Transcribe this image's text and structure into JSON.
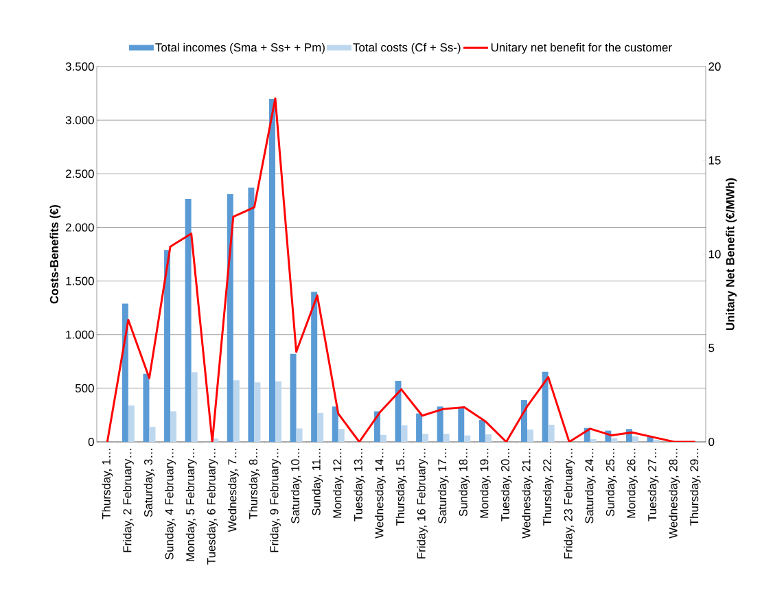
{
  "chart_data": {
    "type": "bar",
    "categories": [
      "Thursday, 1…",
      "Friday, 2 February…",
      "Saturday, 3…",
      "Sunday, 4 February…",
      "Monday, 5 February…",
      "Tuesday, 6 February…",
      "Wednesday, 7…",
      "Thursday, 8…",
      "Friday, 9 February…",
      "Saturday, 10…",
      "Sunday, 11…",
      "Monday, 12…",
      "Tuesday, 13…",
      "Wednesday, 14…",
      "Thursday, 15…",
      "Friday, 16 February…",
      "Saturday, 17…",
      "Sunday, 18…",
      "Monday, 19…",
      "Tuesday, 20…",
      "Wednesday, 21…",
      "Thursday, 22…",
      "Friday, 23 February…",
      "Saturday, 24…",
      "Sunday, 25…",
      "Monday, 26…",
      "Tuesday, 27…",
      "Wednesday, 28…",
      "Thursday, 29…"
    ],
    "series": [
      {
        "name": "Total incomes (Sma + Ss+ + Pm)",
        "color": "#5b9bd5",
        "values": [
          0,
          1290,
          635,
          1790,
          2265,
          0,
          2310,
          2370,
          3200,
          820,
          1400,
          330,
          0,
          285,
          570,
          265,
          330,
          320,
          205,
          0,
          390,
          655,
          0,
          130,
          105,
          120,
          55,
          0,
          0
        ]
      },
      {
        "name": "Total costs (Cf + Ss-)",
        "color": "#bdd7ee",
        "values": [
          0,
          340,
          140,
          285,
          650,
          30,
          575,
          555,
          565,
          125,
          270,
          120,
          0,
          65,
          155,
          75,
          75,
          60,
          70,
          0,
          115,
          160,
          0,
          25,
          35,
          50,
          20,
          0,
          0
        ]
      },
      {
        "name": "Unitary net benefit for the customer",
        "type": "line",
        "axis": "y2",
        "color": "#ff0000",
        "values": [
          0,
          6.5,
          3.4,
          10.4,
          11.1,
          0,
          12.0,
          12.5,
          18.3,
          4.8,
          7.8,
          1.5,
          0,
          1.6,
          2.8,
          1.4,
          1.75,
          1.85,
          1.1,
          0,
          1.9,
          3.45,
          0,
          0.7,
          0.35,
          0.5,
          0.25,
          0,
          0
        ]
      }
    ],
    "ylabel": "Costs-Benefits (€)",
    "y2label": "Unitary Net Benefit (€/MWh)",
    "ylim": [
      0,
      3500
    ],
    "yticks": [
      0,
      500,
      {
        "value": 1000,
        "label": "1.000"
      },
      {
        "value": 1500,
        "label": "1.500"
      },
      {
        "value": 2000,
        "label": "2.000"
      },
      {
        "value": 2500,
        "label": "2.500"
      },
      {
        "value": 3000,
        "label": "3.000"
      },
      {
        "value": 3500,
        "label": "3.500"
      }
    ],
    "y2lim": [
      0,
      20
    ],
    "y2ticks": [
      0,
      5,
      10,
      15,
      20
    ],
    "grid": "y",
    "legend": "top",
    "marker": "none",
    "line_style": "solid"
  }
}
